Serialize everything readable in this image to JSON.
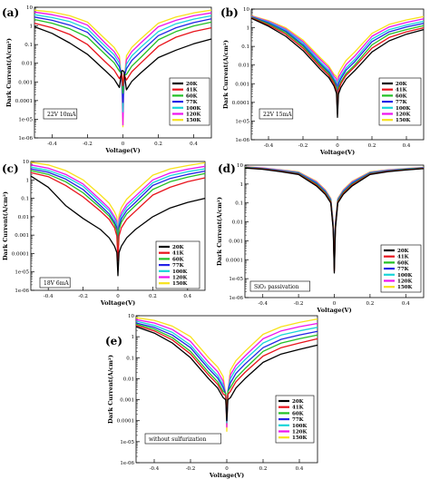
{
  "colors": [
    "#000000",
    "#e8131b",
    "#22c024",
    "#2323e6",
    "#17d5d9",
    "#ee12ee",
    "#f7e21a"
  ],
  "chart_data": [
    {
      "type": "line",
      "panel_label": "(a)",
      "ylabel": "Dark Current(A/cm²)",
      "xlabel": "Voltage(V)",
      "xlim": [
        -0.5,
        0.5
      ],
      "ylim_log10": [
        -6,
        1
      ],
      "x_ticks": [
        "-0.4",
        "-0.2",
        "0",
        "0.2",
        "0.4"
      ],
      "y_ticks": [
        "10",
        "1",
        "0.1",
        "0.01",
        "0.001",
        "0.0001",
        "1e-05",
        "1e-06"
      ],
      "annotation": "22V 10mA",
      "legend": [
        "20K",
        "41K",
        "60K",
        "77K",
        "100K",
        "120K",
        "150K"
      ],
      "legend_position": "right",
      "series": [
        {
          "name": "20K",
          "left": [
            0.9,
            0.4,
            0.12,
            0.03,
            0.004
          ],
          "right": [
            0.003,
            0.02,
            0.05,
            0.11,
            0.2
          ]
        },
        {
          "name": "41K",
          "left": [
            1.4,
            0.8,
            0.35,
            0.1,
            0.012
          ],
          "right": [
            0.01,
            0.08,
            0.25,
            0.5,
            0.8
          ]
        },
        {
          "name": "60K",
          "left": [
            2.2,
            1.4,
            0.7,
            0.25,
            0.03
          ],
          "right": [
            0.02,
            0.18,
            0.5,
            1.0,
            1.6
          ]
        },
        {
          "name": "77K",
          "left": [
            3,
            2,
            1.1,
            0.45,
            0.05
          ],
          "right": [
            0.04,
            0.3,
            0.8,
            1.5,
            2.4
          ]
        },
        {
          "name": "100K",
          "left": [
            4,
            2.8,
            1.7,
            0.7,
            0.08
          ],
          "right": [
            0.07,
            0.5,
            1.3,
            2.3,
            3.5
          ]
        },
        {
          "name": "120K",
          "left": [
            5.5,
            4,
            2.5,
            1.1,
            0.12
          ],
          "right": [
            0.12,
            0.9,
            2.0,
            3.5,
            5.0
          ]
        },
        {
          "name": "150K",
          "left": [
            7,
            5.5,
            3.5,
            1.6,
            0.2
          ],
          "right": [
            0.2,
            1.4,
            3.0,
            5.0,
            7.0
          ]
        }
      ],
      "dip_floor_log10": [
        -2.4,
        -3.2,
        -3.6,
        -4.1,
        -4.6,
        -5.3,
        -5.4
      ]
    },
    {
      "type": "line",
      "panel_label": "(b)",
      "ylabel": "Dark Current(A/cm²)",
      "xlabel": "Voltage(V)",
      "xlim": [
        -0.5,
        0.5
      ],
      "ylim_log10": [
        -6,
        1
      ],
      "x_ticks": [
        "-0.4",
        "-0.2",
        "0",
        "0.2",
        "0.4"
      ],
      "y_ticks": [
        "10",
        "1",
        "0.1",
        "0.01",
        "0.001",
        "0.0001",
        "1e-05",
        "1e-06"
      ],
      "annotation": "22V 15mA",
      "legend": [
        "20K",
        "41K",
        "60K",
        "77K",
        "100K",
        "120K",
        "150K"
      ],
      "legend_position": "right",
      "series": [
        {
          "name": "20K",
          "left": [
            3.2,
            1.2,
            0.35,
            0.06,
            0.006
          ],
          "right": [
            0.005,
            0.05,
            0.2,
            0.45,
            0.8
          ]
        },
        {
          "name": "41K",
          "left": [
            3.4,
            1.4,
            0.45,
            0.08,
            0.008
          ],
          "right": [
            0.008,
            0.08,
            0.3,
            0.6,
            1.0
          ]
        },
        {
          "name": "60K",
          "left": [
            3.6,
            1.6,
            0.55,
            0.1,
            0.01
          ],
          "right": [
            0.01,
            0.12,
            0.45,
            0.8,
            1.3
          ]
        },
        {
          "name": "77K",
          "left": [
            3.8,
            1.8,
            0.65,
            0.12,
            0.012
          ],
          "right": [
            0.015,
            0.18,
            0.6,
            1.1,
            1.7
          ]
        },
        {
          "name": "100K",
          "left": [
            4,
            2.0,
            0.75,
            0.15,
            0.015
          ],
          "right": [
            0.02,
            0.25,
            0.8,
            1.4,
            2.2
          ]
        },
        {
          "name": "120K",
          "left": [
            4.2,
            2.2,
            0.85,
            0.18,
            0.02
          ],
          "right": [
            0.03,
            0.35,
            1.1,
            1.9,
            3.0
          ]
        },
        {
          "name": "150K",
          "left": [
            4.4,
            2.4,
            1.0,
            0.22,
            0.025
          ],
          "right": [
            0.05,
            0.5,
            1.5,
            2.6,
            4.0
          ]
        }
      ],
      "dip_floor_log10": [
        -4.8,
        -4.6,
        -4.4,
        -4.2,
        -4.0,
        -3.8,
        -3.6
      ]
    },
    {
      "type": "line",
      "panel_label": "(c)",
      "ylabel": "Dark Current(A/cm²)",
      "xlabel": "Voltage(V)",
      "xlim": [
        -0.5,
        0.5
      ],
      "ylim_log10": [
        -6,
        1
      ],
      "x_ticks": [
        "-0.4",
        "-0.2",
        "0",
        "0.2",
        "0.4"
      ],
      "y_ticks": [
        "10",
        "1",
        "0.1",
        "0.01",
        "0.001",
        "0.0001",
        "1e-05",
        "1e-06"
      ],
      "annotation": "18V 6mA",
      "legend": [
        "20K",
        "41K",
        "60K",
        "77K",
        "100K",
        "120K",
        "150K"
      ],
      "legend_position": "right",
      "series": [
        {
          "name": "20K",
          "left": [
            1.6,
            0.4,
            0.04,
            0.008,
            0.002
          ],
          "right": [
            0.002,
            0.01,
            0.03,
            0.06,
            0.1
          ]
        },
        {
          "name": "41K",
          "left": [
            2.5,
            1.5,
            0.5,
            0.12,
            0.02
          ],
          "right": [
            0.02,
            0.15,
            0.4,
            0.8,
            1.3
          ]
        },
        {
          "name": "60K",
          "left": [
            3.2,
            2.0,
            0.8,
            0.2,
            0.03
          ],
          "right": [
            0.04,
            0.3,
            0.8,
            1.4,
            2.2
          ]
        },
        {
          "name": "77K",
          "left": [
            4,
            2.6,
            1.1,
            0.3,
            0.04
          ],
          "right": [
            0.06,
            0.5,
            1.2,
            2.0,
            3.0
          ]
        },
        {
          "name": "100K",
          "left": [
            5,
            3.3,
            1.5,
            0.45,
            0.06
          ],
          "right": [
            0.09,
            0.7,
            1.7,
            2.8,
            4.0
          ]
        },
        {
          "name": "120K",
          "left": [
            6.5,
            4.3,
            2.0,
            0.6,
            0.08
          ],
          "right": [
            0.13,
            1.0,
            2.4,
            3.8,
            5.5
          ]
        },
        {
          "name": "150K",
          "left": [
            9,
            6.5,
            3.2,
            1.0,
            0.15
          ],
          "right": [
            0.25,
            1.8,
            4.0,
            6.0,
            8.5
          ]
        }
      ],
      "dip_floor_log10": [
        -5.2,
        -4.4,
        -4.0,
        -3.8,
        -3.6,
        -3.4,
        -3.2
      ]
    },
    {
      "type": "line",
      "panel_label": "(d)",
      "ylabel": "Dark Current(A/cm²)",
      "xlabel": "Voltage(V)",
      "xlim": [
        -0.5,
        0.5
      ],
      "ylim_log10": [
        -6,
        1
      ],
      "x_ticks": [
        "-0.4",
        "-0.2",
        "0",
        "0.2",
        "0.4"
      ],
      "y_ticks": [
        "10",
        "1",
        "0.1",
        "0.01",
        "0.001",
        "0.0001",
        "1e-05",
        "1e-06"
      ],
      "annotation": "SiO₂ passivation",
      "legend": [
        "20K",
        "41K",
        "60K",
        "77K",
        "100K",
        "120K",
        "150K"
      ],
      "legend_position": "right",
      "series": [
        {
          "name": "20K",
          "left": [
            7,
            6,
            4.5,
            3.2,
            0.8
          ],
          "right": [
            0.8,
            3.2,
            4.5,
            5.5,
            6.5
          ]
        },
        {
          "name": "41K",
          "left": [
            7.2,
            6.2,
            4.7,
            3.4,
            0.9
          ],
          "right": [
            0.9,
            3.4,
            4.7,
            5.7,
            6.7
          ]
        },
        {
          "name": "60K",
          "left": [
            7.4,
            6.4,
            4.9,
            3.6,
            1.0
          ],
          "right": [
            1.0,
            3.6,
            4.9,
            5.9,
            6.9
          ]
        },
        {
          "name": "77K",
          "left": [
            7.6,
            6.6,
            5.1,
            3.8,
            1.1
          ],
          "right": [
            1.1,
            3.8,
            5.1,
            6.1,
            7.1
          ]
        },
        {
          "name": "100K",
          "left": [
            7.8,
            6.8,
            5.3,
            4.0,
            1.2
          ],
          "right": [
            1.2,
            4.0,
            5.3,
            6.3,
            7.3
          ]
        },
        {
          "name": "120K",
          "left": [
            8.0,
            7.0,
            5.5,
            4.2,
            1.3
          ],
          "right": [
            1.3,
            4.2,
            5.5,
            6.5,
            7.5
          ]
        },
        {
          "name": "150K",
          "left": [
            8.2,
            7.2,
            5.7,
            4.4,
            1.4
          ],
          "right": [
            1.4,
            4.4,
            5.7,
            6.7,
            7.7
          ]
        }
      ],
      "dip_floor_log10": [
        -4.7,
        -4.6,
        -4.5,
        -4.4,
        -4.3,
        -4.2,
        -4.1
      ]
    },
    {
      "type": "line",
      "panel_label": "(e)",
      "ylabel": "Dark Current(A/cm²)",
      "xlabel": "Voltage(V)",
      "xlim": [
        -0.5,
        0.5
      ],
      "ylim_log10": [
        -6,
        1
      ],
      "x_ticks": [
        "-0.4",
        "-0.2",
        "0",
        "0.2",
        "0.4"
      ],
      "y_ticks": [
        "10",
        "1",
        "0.1",
        "0.01",
        "0.001",
        "0.0001",
        "1e-05",
        "1e-06"
      ],
      "annotation": "without sulfurization",
      "legend": [
        "20K",
        "41K",
        "60K",
        "77K",
        "100K",
        "120K",
        "150K"
      ],
      "legend_position": "right",
      "series": [
        {
          "name": "20K",
          "left": [
            3,
            1.5,
            0.5,
            0.1,
            0.01
          ],
          "right": [
            0.01,
            0.06,
            0.15,
            0.25,
            0.4
          ]
        },
        {
          "name": "41K",
          "left": [
            3.5,
            1.9,
            0.7,
            0.15,
            0.015
          ],
          "right": [
            0.02,
            0.12,
            0.3,
            0.5,
            0.8
          ]
        },
        {
          "name": "60K",
          "left": [
            4,
            2.3,
            0.9,
            0.2,
            0.02
          ],
          "right": [
            0.03,
            0.2,
            0.5,
            0.8,
            1.2
          ]
        },
        {
          "name": "77K",
          "left": [
            4.5,
            2.8,
            1.2,
            0.3,
            0.03
          ],
          "right": [
            0.05,
            0.3,
            0.75,
            1.2,
            1.8
          ]
        },
        {
          "name": "100K",
          "left": [
            5.5,
            3.5,
            1.6,
            0.4,
            0.04
          ],
          "right": [
            0.08,
            0.5,
            1.2,
            1.9,
            2.8
          ]
        },
        {
          "name": "120K",
          "left": [
            6.5,
            4.5,
            2.2,
            0.6,
            0.06
          ],
          "right": [
            0.12,
            0.8,
            1.9,
            3.0,
            4.3
          ]
        },
        {
          "name": "150K",
          "left": [
            8,
            6,
            3.2,
            1.0,
            0.1
          ],
          "right": [
            0.2,
            1.3,
            3.0,
            4.8,
            7.0
          ]
        }
      ],
      "dip_floor_log10": [
        -4.0,
        -3.8,
        -3.7,
        -3.9,
        -4.1,
        -4.3,
        -4.5
      ]
    }
  ]
}
